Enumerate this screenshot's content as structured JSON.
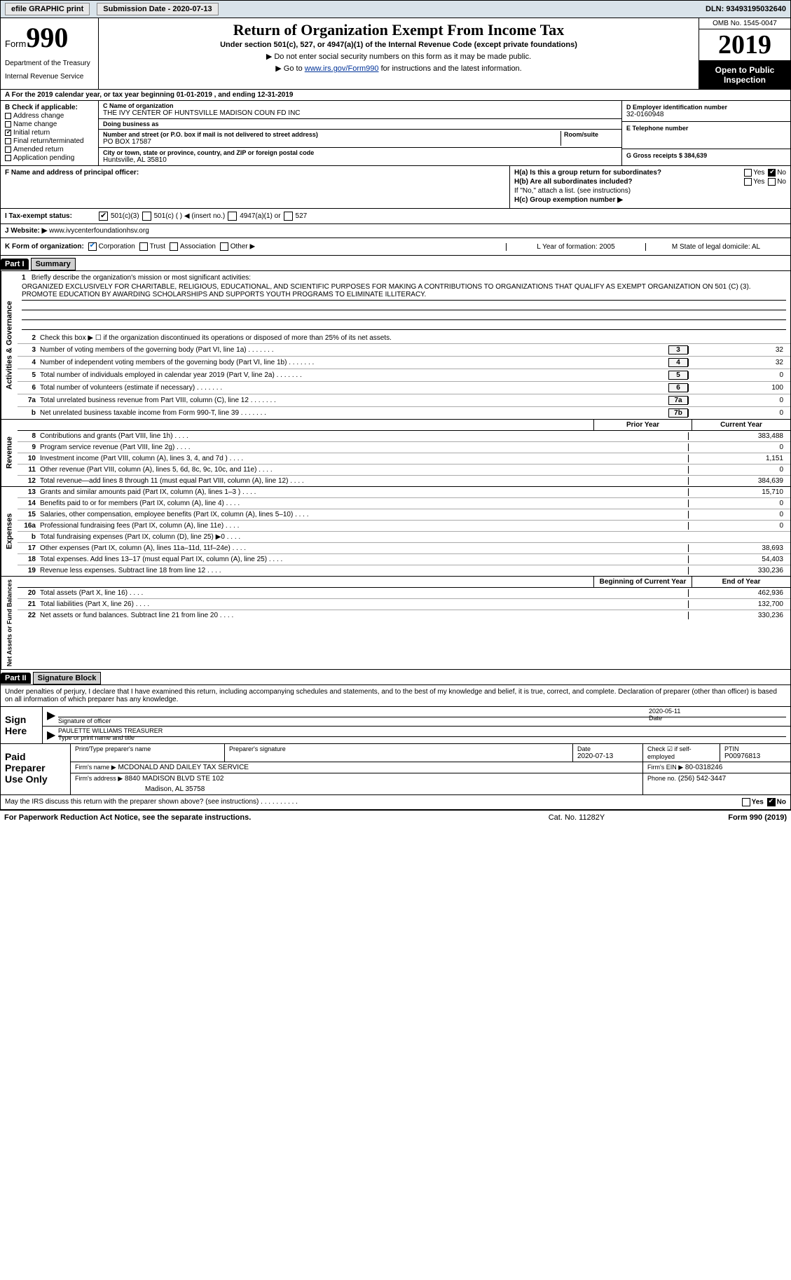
{
  "topbar": {
    "efile": "efile GRAPHIC print",
    "sub_label": "Submission Date - 2020-07-13",
    "dln": "DLN: 93493195032640"
  },
  "header": {
    "form_prefix": "Form",
    "form_num": "990",
    "dept": "Department of the Treasury",
    "irs": "Internal Revenue Service",
    "title": "Return of Organization Exempt From Income Tax",
    "sub1": "Under section 501(c), 527, or 4947(a)(1) of the Internal Revenue Code (except private foundations)",
    "sub2": "▶ Do not enter social security numbers on this form as it may be made public.",
    "sub3_a": "▶ Go to ",
    "sub3_link": "www.irs.gov/Form990",
    "sub3_b": " for instructions and the latest information.",
    "omb": "OMB No. 1545-0047",
    "year": "2019",
    "open_pub": "Open to Public Inspection"
  },
  "line_a": "For the 2019 calendar year, or tax year beginning 01-01-2019   , and ending 12-31-2019",
  "sectionB": {
    "label": "B Check if applicable:",
    "rows": [
      {
        "txt": "Address change",
        "on": false
      },
      {
        "txt": "Name change",
        "on": false
      },
      {
        "txt": "Initial return",
        "on": true
      },
      {
        "txt": "Final return/terminated",
        "on": false
      },
      {
        "txt": "Amended return",
        "on": false
      },
      {
        "txt": "Application pending",
        "on": false
      }
    ]
  },
  "sectionC": {
    "c_label": "C Name of organization",
    "org": "THE IVY CENTER OF HUNTSVILLE MADISON COUN FD INC",
    "dba_label": "Doing business as",
    "dba": "",
    "addr_label": "Number and street (or P.O. box if mail is not delivered to street address)",
    "room_label": "Room/suite",
    "addr": "PO BOX 17587",
    "city_label": "City or town, state or province, country, and ZIP or foreign postal code",
    "city": "Huntsville, AL  35810"
  },
  "sectionDE": {
    "d_label": "D Employer identification number",
    "ein": "32-0160948",
    "e_label": "E Telephone number",
    "tel": "",
    "g_label": "G Gross receipts $ 384,639"
  },
  "sectionF": {
    "f_label": "F  Name and address of principal officer:",
    "ha": "H(a)  Is this a group return for subordinates?",
    "hb": "H(b)  Are all subordinates included?",
    "hb_note": "If \"No,\" attach a list. (see instructions)",
    "hc": "H(c)  Group exemption number ▶"
  },
  "tax_status": {
    "label": "I  Tax-exempt status:",
    "opts": [
      "501(c)(3)",
      "501(c) (  ) ◀ (insert no.)",
      "4947(a)(1) or",
      "527"
    ]
  },
  "website": {
    "label": "J  Website: ▶",
    "url": "www.ivycenterfoundationhsv.org"
  },
  "row_k": {
    "label": "K Form of organization:",
    "opts": [
      "Corporation",
      "Trust",
      "Association",
      "Other ▶"
    ],
    "l": "L Year of formation: 2005",
    "m": "M State of legal domicile: AL"
  },
  "part1": {
    "num": "Part I",
    "title": "Summary",
    "q1": "Briefly describe the organization's mission or most significant activities:",
    "mission": "ORGANIZED EXCLUSIVELY FOR CHARITABLE, RELIGIOUS, EDUCATIONAL, AND SCIENTIFIC PURPOSES FOR MAKING A CONTRIBUTIONS TO ORGANIZATIONS THAT QUALIFY AS EXEMPT ORGANIZATION ON 501 (C) (3). PROMOTE EDUCATION BY AWARDING SCHOLARSHIPS AND SUPPORTS YOUTH PROGRAMS TO ELIMINATE ILLITERACY.",
    "q2": "Check this box ▶ ☐ if the organization discontinued its operations or disposed of more than 25% of its net assets.",
    "gov_rows": [
      {
        "n": "3",
        "txt": "Number of voting members of the governing body (Part VI, line 1a)",
        "box": "3",
        "val": "32"
      },
      {
        "n": "4",
        "txt": "Number of independent voting members of the governing body (Part VI, line 1b)",
        "box": "4",
        "val": "32"
      },
      {
        "n": "5",
        "txt": "Total number of individuals employed in calendar year 2019 (Part V, line 2a)",
        "box": "5",
        "val": "0"
      },
      {
        "n": "6",
        "txt": "Total number of volunteers (estimate if necessary)",
        "box": "6",
        "val": "100"
      },
      {
        "n": "7a",
        "txt": "Total unrelated business revenue from Part VIII, column (C), line 12",
        "box": "7a",
        "val": "0"
      },
      {
        "n": "b",
        "txt": "Net unrelated business taxable income from Form 990-T, line 39",
        "box": "7b",
        "val": "0"
      }
    ],
    "prior_hdr": "Prior Year",
    "cur_hdr": "Current Year",
    "rev_rows": [
      {
        "n": "8",
        "txt": "Contributions and grants (Part VIII, line 1h)",
        "prior": "",
        "cur": "383,488"
      },
      {
        "n": "9",
        "txt": "Program service revenue (Part VIII, line 2g)",
        "prior": "",
        "cur": "0"
      },
      {
        "n": "10",
        "txt": "Investment income (Part VIII, column (A), lines 3, 4, and 7d )",
        "prior": "",
        "cur": "1,151"
      },
      {
        "n": "11",
        "txt": "Other revenue (Part VIII, column (A), lines 5, 6d, 8c, 9c, 10c, and 11e)",
        "prior": "",
        "cur": "0"
      },
      {
        "n": "12",
        "txt": "Total revenue—add lines 8 through 11 (must equal Part VIII, column (A), line 12)",
        "prior": "",
        "cur": "384,639"
      }
    ],
    "exp_rows": [
      {
        "n": "13",
        "txt": "Grants and similar amounts paid (Part IX, column (A), lines 1–3 )",
        "prior": "",
        "cur": "15,710"
      },
      {
        "n": "14",
        "txt": "Benefits paid to or for members (Part IX, column (A), line 4)",
        "prior": "",
        "cur": "0"
      },
      {
        "n": "15",
        "txt": "Salaries, other compensation, employee benefits (Part IX, column (A), lines 5–10)",
        "prior": "",
        "cur": "0"
      },
      {
        "n": "16a",
        "txt": "Professional fundraising fees (Part IX, column (A), line 11e)",
        "prior": "",
        "cur": "0"
      },
      {
        "n": "b",
        "txt": "Total fundraising expenses (Part IX, column (D), line 25) ▶0",
        "prior": "grey",
        "cur": "grey"
      },
      {
        "n": "17",
        "txt": "Other expenses (Part IX, column (A), lines 11a–11d, 11f–24e)",
        "prior": "",
        "cur": "38,693"
      },
      {
        "n": "18",
        "txt": "Total expenses. Add lines 13–17 (must equal Part IX, column (A), line 25)",
        "prior": "",
        "cur": "54,403"
      },
      {
        "n": "19",
        "txt": "Revenue less expenses. Subtract line 18 from line 12",
        "prior": "",
        "cur": "330,236"
      }
    ],
    "begin_hdr": "Beginning of Current Year",
    "end_hdr": "End of Year",
    "net_rows": [
      {
        "n": "20",
        "txt": "Total assets (Part X, line 16)",
        "prior": "",
        "cur": "462,936"
      },
      {
        "n": "21",
        "txt": "Total liabilities (Part X, line 26)",
        "prior": "",
        "cur": "132,700"
      },
      {
        "n": "22",
        "txt": "Net assets or fund balances. Subtract line 21 from line 20",
        "prior": "",
        "cur": "330,236"
      }
    ]
  },
  "part2": {
    "num": "Part II",
    "title": "Signature Block",
    "intro": "Under penalties of perjury, I declare that I have examined this return, including accompanying schedules and statements, and to the best of my knowledge and belief, it is true, correct, and complete. Declaration of preparer (other than officer) is based on all information of which preparer has any knowledge."
  },
  "sign": {
    "label": "Sign Here",
    "sig_label": "Signature of officer",
    "date_label": "Date",
    "date_val": "2020-05-11",
    "name": "PAULETTE WILLIAMS TREASURER",
    "name_label": "Type or print name and title"
  },
  "prep": {
    "label": "Paid Preparer Use Only",
    "pt_name_l": "Print/Type preparer's name",
    "pt_sig_l": "Preparer's signature",
    "pt_date_l": "Date",
    "pt_date": "2020-07-13",
    "self_l": "Check ☑ if self-employed",
    "ptin_l": "PTIN",
    "ptin": "P00976813",
    "firm_name_l": "Firm's name  ▶",
    "firm_name": "MCDONALD AND DAILEY TAX SERVICE",
    "firm_ein_l": "Firm's EIN ▶",
    "firm_ein": "80-0318246",
    "firm_addr_l": "Firm's address ▶",
    "firm_addr1": "8840 MADISON BLVD STE 102",
    "firm_addr2": "Madison, AL  35758",
    "phone_l": "Phone no.",
    "phone": "(256) 542-3447"
  },
  "irs_discuss": "May the IRS discuss this return with the preparer shown above? (see instructions)",
  "footer": {
    "l": "For Paperwork Reduction Act Notice, see the separate instructions.",
    "m": "Cat. No. 11282Y",
    "r": "Form 990 (2019)"
  }
}
